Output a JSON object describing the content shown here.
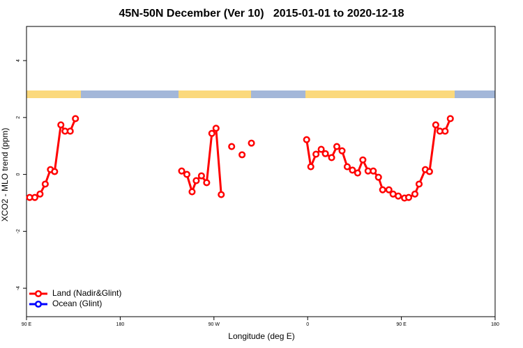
{
  "chart_data": {
    "type": "line",
    "title": "45N-50N December (Ver 10)   2015-01-01 to 2020-12-18",
    "x_label": "Longitude (deg E)",
    "y_label": "XCO2 - MLO trend (ppm)",
    "xlim": [
      90,
      540
    ],
    "xticks": [
      {
        "value": 90,
        "label": "90 E"
      },
      {
        "value": 180,
        "label": "180"
      },
      {
        "value": 270,
        "label": "90 W"
      },
      {
        "value": 360,
        "label": "0"
      },
      {
        "value": 450,
        "label": "90 E"
      },
      {
        "value": 540,
        "label": "180"
      }
    ],
    "ylim": [
      -5,
      5.2
    ],
    "yticks": [
      -4,
      -2,
      0,
      2,
      4
    ],
    "legend": "bottom-left",
    "x": [
      93,
      98,
      103,
      108,
      113,
      117,
      123,
      127,
      132,
      137,
      190,
      239,
      244,
      249,
      253,
      258,
      263,
      268,
      272,
      277,
      282,
      287,
      292,
      297,
      302,
      306,
      330,
      359,
      363,
      368,
      373,
      377,
      383,
      388,
      393,
      398,
      403,
      408,
      413,
      418,
      423,
      428,
      432,
      438,
      442,
      447,
      453,
      457,
      463,
      467,
      473,
      477,
      483,
      487,
      492,
      497
    ],
    "series": [
      {
        "name": "Land (Nadir&Glint)",
        "color": "#ff0000",
        "values": [
          -0.81,
          -0.81,
          -0.69,
          -0.34,
          0.17,
          0.1,
          1.74,
          1.52,
          1.52,
          1.96,
          null,
          0.12,
          0,
          -0.61,
          -0.22,
          -0.05,
          -0.29,
          1.44,
          1.62,
          -0.71,
          null,
          0.98,
          null,
          0.69,
          null,
          1.1,
          null,
          1.22,
          0.27,
          0.71,
          0.88,
          0.73,
          0.59,
          0.98,
          0.83,
          0.27,
          0.15,
          0.05,
          0.51,
          0.12,
          0.12,
          -0.1,
          -0.54,
          -0.54,
          -0.69,
          -0.76,
          -0.83,
          -0.81,
          -0.69,
          -0.34,
          0.17,
          0.1,
          1.74,
          1.52,
          1.52,
          1.96
        ]
      },
      {
        "name": "Ocean (Glint)",
        "color": "#0000ff",
        "values": [
          null,
          null,
          null,
          null,
          null,
          null,
          null,
          null,
          null,
          null,
          null,
          null,
          null,
          null,
          null,
          null,
          null,
          null,
          null,
          null,
          null,
          null,
          null,
          null,
          null,
          null,
          null,
          null,
          null,
          null,
          null,
          null,
          null,
          null,
          null,
          null,
          null,
          null,
          null,
          null,
          null,
          null,
          null,
          null,
          null,
          null,
          null,
          null,
          null,
          null,
          null,
          null,
          null,
          null,
          null,
          null
        ]
      }
    ]
  }
}
